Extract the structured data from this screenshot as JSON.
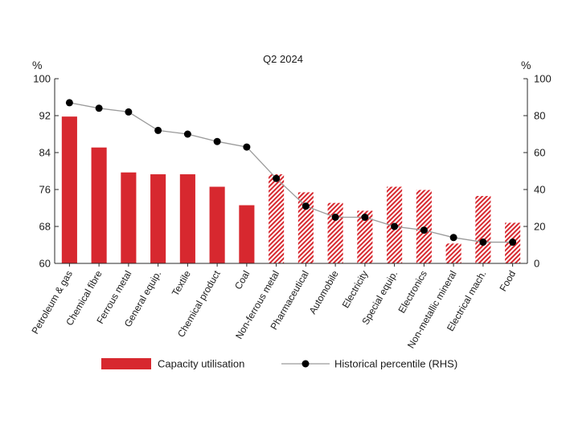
{
  "chart_data": {
    "type": "bar",
    "title": "Q2 2024",
    "left_axis_unit": "%",
    "right_axis_unit": "%",
    "ylim": [
      60,
      100
    ],
    "yticks": [
      60,
      68,
      76,
      84,
      92,
      100
    ],
    "y2lim": [
      0,
      100
    ],
    "y2ticks": [
      0,
      20,
      40,
      60,
      80,
      100
    ],
    "categories": [
      "Petroleum & gas",
      "Chemical fibre",
      "Ferrous metal",
      "General equip.",
      "Textile",
      "Chemical product",
      "Coal",
      "Non-ferrous metal",
      "Pharmaceutical",
      "Automobile",
      "Electricity",
      "Special equip.",
      "Electronics",
      "Non-metallic mineral",
      "Electrical mach.",
      "Food"
    ],
    "series": [
      {
        "name": "Capacity utilisation",
        "type": "bar",
        "axis": "left",
        "values": [
          91.8,
          85.1,
          79.7,
          79.3,
          79.3,
          76.6,
          72.6,
          79.3,
          75.4,
          73.1,
          71.4,
          76.6,
          75.9,
          64.3,
          74.6,
          68.8
        ],
        "pattern": [
          "solid",
          "solid",
          "solid",
          "solid",
          "solid",
          "solid",
          "solid",
          "hatched",
          "hatched",
          "hatched",
          "hatched",
          "hatched",
          "hatched",
          "hatched",
          "hatched",
          "hatched"
        ]
      },
      {
        "name": "Historical percentile (RHS)",
        "type": "line",
        "axis": "right",
        "values": [
          87,
          84,
          82,
          72,
          70,
          66,
          63,
          46,
          31,
          25,
          25,
          20,
          18,
          14,
          11.5,
          11.5
        ]
      }
    ],
    "legend_position": "bottom",
    "grid": false,
    "colors": {
      "bar": "#d7282f",
      "line": "#9a9a9a",
      "marker": "#000000",
      "axis": "#2a2a2a"
    }
  }
}
